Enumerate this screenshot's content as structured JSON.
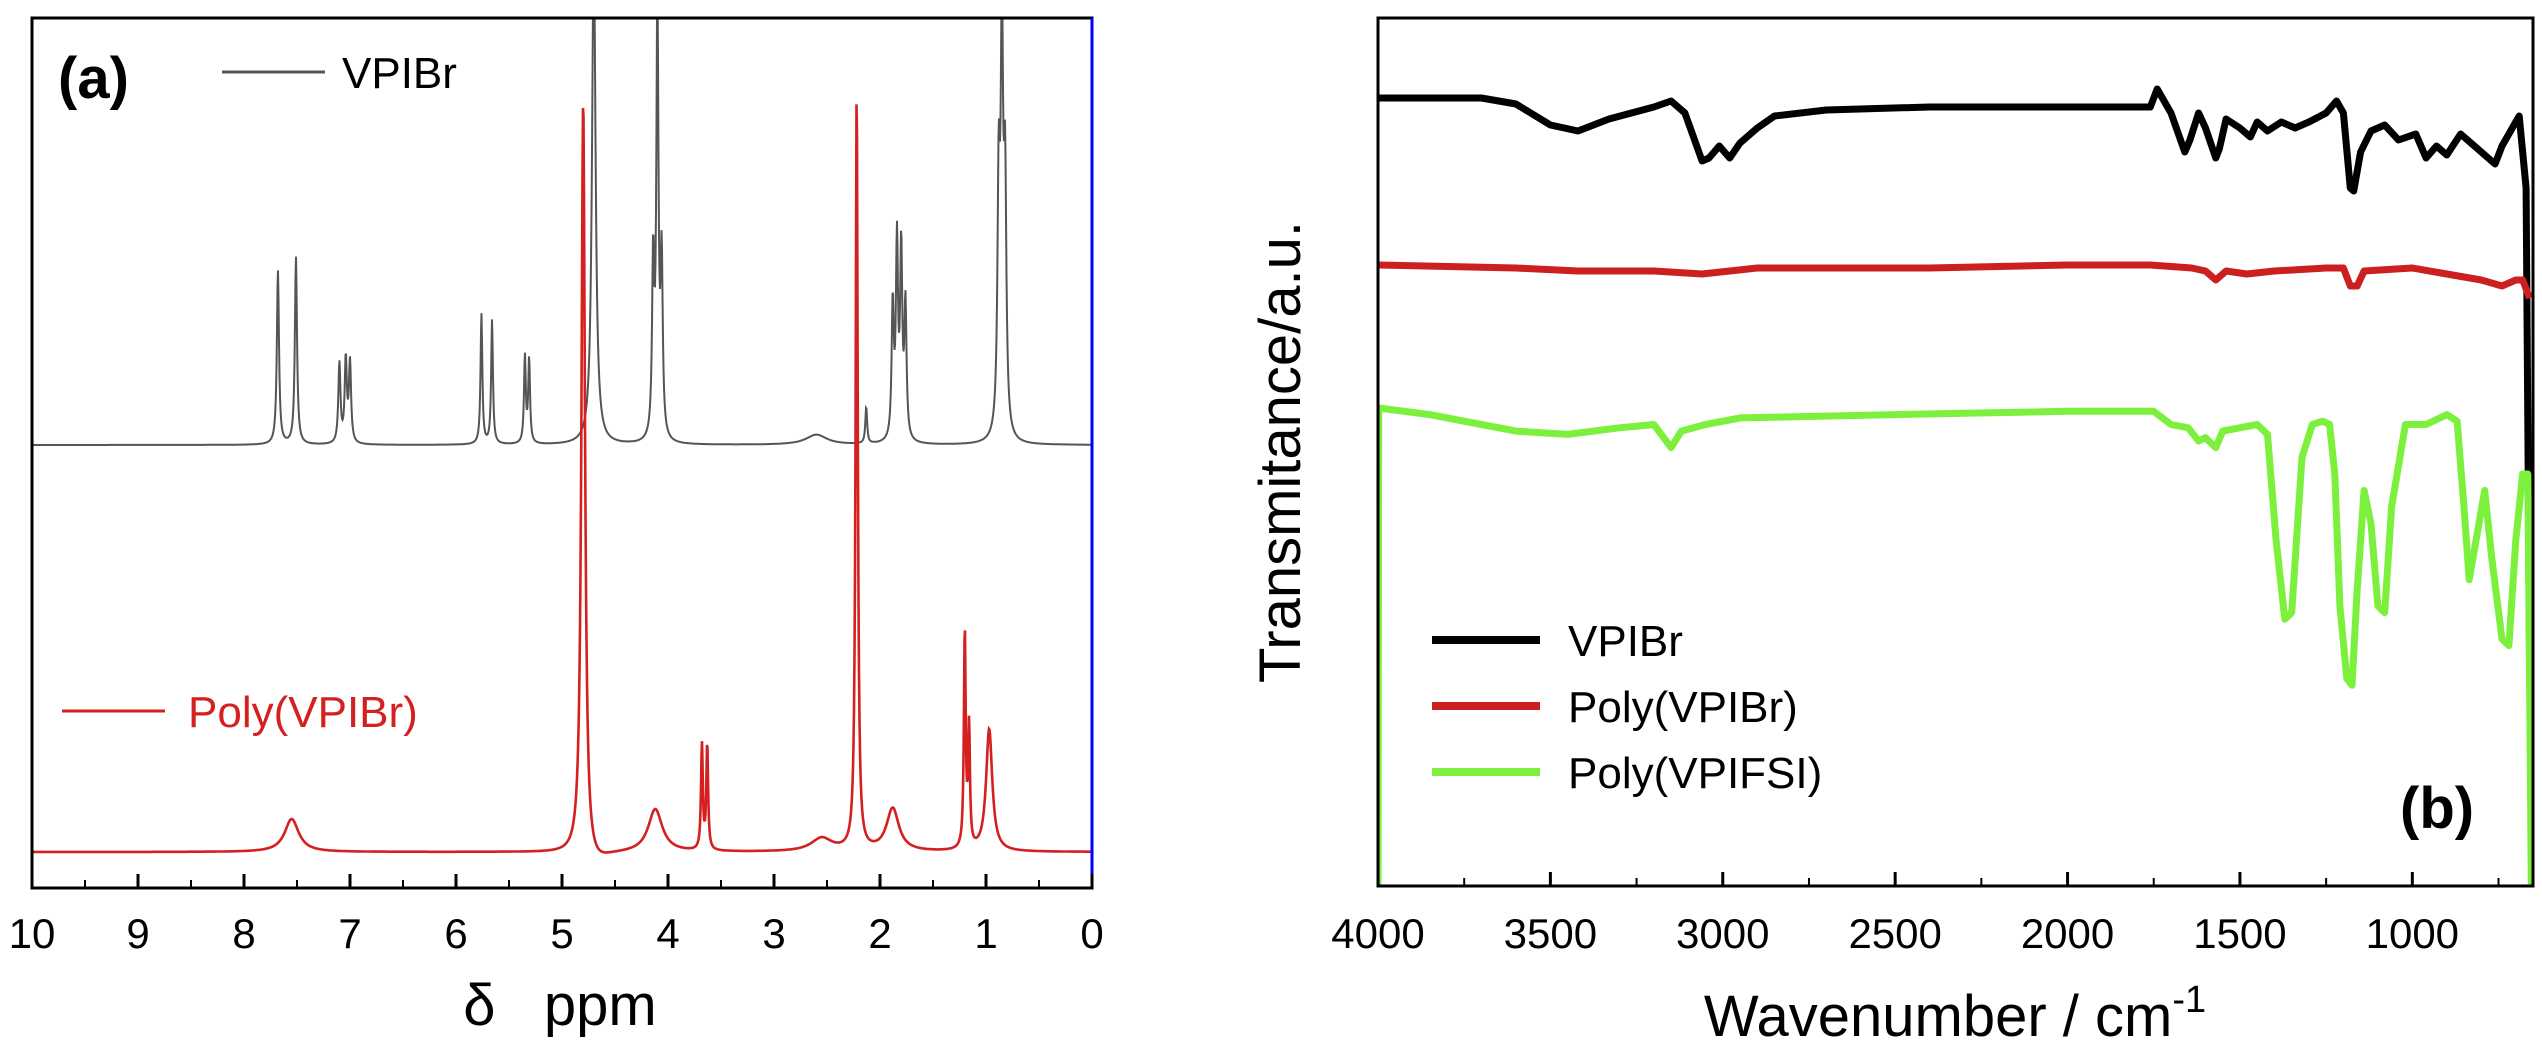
{
  "chart_data": [
    {
      "panel_label": "(a)",
      "type": "line",
      "xlabel": "δ   ppm",
      "x_ticks": [
        "10",
        "9",
        "8",
        "7",
        "6",
        "5",
        "4",
        "3",
        "2",
        "1",
        "0"
      ],
      "xlim": [
        10,
        0
      ],
      "x_reversed": true,
      "legend_position": "upper-left / middle-left",
      "colors": {
        "VPIBr": "#555555",
        "Poly(VPIBr)": "#d42020",
        "frame": "#000000",
        "right_edge": "#0000ff"
      },
      "series": [
        {
          "name": "VPIBr",
          "legend_label": "VPIBr",
          "baseline": 0,
          "peaks": [
            {
              "ppm": 7.68,
              "intensity": 0.52,
              "width": 0.012
            },
            {
              "ppm": 7.51,
              "intensity": 0.56,
              "width": 0.012
            },
            {
              "ppm": 7.1,
              "intensity": 0.24,
              "width": 0.012
            },
            {
              "ppm": 7.04,
              "intensity": 0.25,
              "width": 0.012
            },
            {
              "ppm": 7.0,
              "intensity": 0.24,
              "width": 0.012
            },
            {
              "ppm": 5.76,
              "intensity": 0.39,
              "width": 0.01
            },
            {
              "ppm": 5.66,
              "intensity": 0.37,
              "width": 0.01
            },
            {
              "ppm": 5.35,
              "intensity": 0.26,
              "width": 0.01
            },
            {
              "ppm": 5.31,
              "intensity": 0.25,
              "width": 0.01
            },
            {
              "ppm": 4.7,
              "intensity": 1.5,
              "width": 0.02
            },
            {
              "ppm": 4.14,
              "intensity": 0.52,
              "width": 0.012
            },
            {
              "ppm": 4.1,
              "intensity": 1.3,
              "width": 0.012
            },
            {
              "ppm": 4.06,
              "intensity": 0.52,
              "width": 0.012
            },
            {
              "ppm": 2.6,
              "intensity": 0.03,
              "width": 0.12
            },
            {
              "ppm": 2.13,
              "intensity": 0.11,
              "width": 0.01
            },
            {
              "ppm": 1.88,
              "intensity": 0.4,
              "width": 0.012
            },
            {
              "ppm": 1.84,
              "intensity": 0.58,
              "width": 0.012
            },
            {
              "ppm": 1.8,
              "intensity": 0.56,
              "width": 0.012
            },
            {
              "ppm": 1.76,
              "intensity": 0.4,
              "width": 0.012
            },
            {
              "ppm": 0.88,
              "intensity": 0.72,
              "width": 0.014
            },
            {
              "ppm": 0.85,
              "intensity": 1.15,
              "width": 0.014
            },
            {
              "ppm": 0.82,
              "intensity": 0.72,
              "width": 0.014
            }
          ]
        },
        {
          "name": "Poly(VPIBr)",
          "legend_label": "Poly(VPIBr)",
          "baseline": 0,
          "peaks": [
            {
              "ppm": 7.55,
              "intensity": 0.1,
              "width": 0.08
            },
            {
              "ppm": 4.8,
              "intensity": 2.3,
              "width": 0.02
            },
            {
              "ppm": 4.7,
              "intensity": -0.04,
              "width": 0.15
            },
            {
              "ppm": 4.12,
              "intensity": 0.13,
              "width": 0.08
            },
            {
              "ppm": 3.68,
              "intensity": 0.32,
              "width": 0.01
            },
            {
              "ppm": 3.63,
              "intensity": 0.32,
              "width": 0.01
            },
            {
              "ppm": 2.55,
              "intensity": 0.04,
              "width": 0.12
            },
            {
              "ppm": 2.22,
              "intensity": 2.3,
              "width": 0.012
            },
            {
              "ppm": 1.88,
              "intensity": 0.13,
              "width": 0.07
            },
            {
              "ppm": 1.2,
              "intensity": 0.66,
              "width": 0.01
            },
            {
              "ppm": 1.16,
              "intensity": 0.36,
              "width": 0.01
            },
            {
              "ppm": 0.97,
              "intensity": 0.37,
              "width": 0.035
            }
          ]
        }
      ]
    },
    {
      "panel_label": "(b)",
      "type": "line",
      "xlabel": "Wavenumber / cm",
      "xlabel_superscript": "-1",
      "ylabel": "Transmitance/a.u.",
      "x_ticks": [
        "4000",
        "3500",
        "3000",
        "2500",
        "2000",
        "1500",
        "1000"
      ],
      "xlim": [
        4000,
        650
      ],
      "x_reversed": true,
      "legend_position": "lower-left",
      "colors": {
        "VPIBr": "#000000",
        "Poly(VPIBr)": "#cc1f1f",
        "Poly(VPIFSI)": "#7cf03c"
      },
      "series": [
        {
          "name": "VPIBr",
          "legend_label": "VPIBr",
          "points": [
            [
              4000,
              0.0
            ],
            [
              3700,
              0.0
            ],
            [
              3600,
              -0.02
            ],
            [
              3500,
              -0.09
            ],
            [
              3420,
              -0.11
            ],
            [
              3330,
              -0.07
            ],
            [
              3200,
              -0.03
            ],
            [
              3150,
              -0.01
            ],
            [
              3110,
              -0.05
            ],
            [
              3060,
              -0.21
            ],
            [
              3040,
              -0.2
            ],
            [
              3010,
              -0.16
            ],
            [
              2980,
              -0.2
            ],
            [
              2950,
              -0.15
            ],
            [
              2900,
              -0.1
            ],
            [
              2850,
              -0.06
            ],
            [
              2700,
              -0.04
            ],
            [
              2400,
              -0.03
            ],
            [
              2000,
              -0.03
            ],
            [
              1760,
              -0.03
            ],
            [
              1740,
              0.03
            ],
            [
              1700,
              -0.05
            ],
            [
              1660,
              -0.18
            ],
            [
              1645,
              -0.14
            ],
            [
              1620,
              -0.05
            ],
            [
              1600,
              -0.1
            ],
            [
              1570,
              -0.2
            ],
            [
              1560,
              -0.17
            ],
            [
              1540,
              -0.07
            ],
            [
              1500,
              -0.1
            ],
            [
              1470,
              -0.13
            ],
            [
              1450,
              -0.08
            ],
            [
              1420,
              -0.11
            ],
            [
              1380,
              -0.08
            ],
            [
              1340,
              -0.1
            ],
            [
              1300,
              -0.08
            ],
            [
              1250,
              -0.05
            ],
            [
              1220,
              -0.01
            ],
            [
              1200,
              -0.05
            ],
            [
              1180,
              -0.3
            ],
            [
              1170,
              -0.31
            ],
            [
              1150,
              -0.18
            ],
            [
              1120,
              -0.11
            ],
            [
              1080,
              -0.09
            ],
            [
              1040,
              -0.14
            ],
            [
              990,
              -0.12
            ],
            [
              960,
              -0.2
            ],
            [
              930,
              -0.16
            ],
            [
              900,
              -0.19
            ],
            [
              860,
              -0.12
            ],
            [
              820,
              -0.16
            ],
            [
              780,
              -0.2
            ],
            [
              760,
              -0.22
            ],
            [
              740,
              -0.16
            ],
            [
              710,
              -0.1
            ],
            [
              690,
              -0.06
            ],
            [
              670,
              -0.3
            ],
            [
              660,
              -1.9
            ]
          ]
        },
        {
          "name": "Poly(VPIBr)",
          "legend_label": "Poly(VPIBr)",
          "points": [
            [
              4000,
              0.0
            ],
            [
              3600,
              -0.01
            ],
            [
              3420,
              -0.02
            ],
            [
              3200,
              -0.02
            ],
            [
              3060,
              -0.03
            ],
            [
              2900,
              -0.01
            ],
            [
              2400,
              -0.01
            ],
            [
              2000,
              0.0
            ],
            [
              1760,
              0.0
            ],
            [
              1640,
              -0.01
            ],
            [
              1600,
              -0.02
            ],
            [
              1570,
              -0.05
            ],
            [
              1540,
              -0.02
            ],
            [
              1480,
              -0.03
            ],
            [
              1400,
              -0.02
            ],
            [
              1250,
              -0.01
            ],
            [
              1200,
              -0.01
            ],
            [
              1180,
              -0.07
            ],
            [
              1160,
              -0.07
            ],
            [
              1140,
              -0.02
            ],
            [
              1000,
              -0.01
            ],
            [
              900,
              -0.03
            ],
            [
              800,
              -0.05
            ],
            [
              740,
              -0.07
            ],
            [
              700,
              -0.05
            ],
            [
              680,
              -0.05
            ],
            [
              660,
              -0.11
            ]
          ]
        },
        {
          "name": "Poly(VPIFSI)",
          "legend_label": "Poly(VPIFSI)",
          "points": [
            [
              4000,
              -1.7
            ],
            [
              3998,
              0.0
            ],
            [
              3850,
              -0.02
            ],
            [
              3700,
              -0.05
            ],
            [
              3600,
              -0.07
            ],
            [
              3450,
              -0.08
            ],
            [
              3300,
              -0.06
            ],
            [
              3200,
              -0.05
            ],
            [
              3150,
              -0.12
            ],
            [
              3120,
              -0.07
            ],
            [
              3050,
              -0.05
            ],
            [
              2950,
              -0.03
            ],
            [
              2500,
              -0.02
            ],
            [
              2000,
              -0.01
            ],
            [
              1750,
              -0.01
            ],
            [
              1700,
              -0.05
            ],
            [
              1650,
              -0.06
            ],
            [
              1620,
              -0.1
            ],
            [
              1600,
              -0.09
            ],
            [
              1570,
              -0.12
            ],
            [
              1550,
              -0.07
            ],
            [
              1500,
              -0.06
            ],
            [
              1450,
              -0.05
            ],
            [
              1420,
              -0.08
            ],
            [
              1395,
              -0.4
            ],
            [
              1370,
              -0.64
            ],
            [
              1350,
              -0.62
            ],
            [
              1320,
              -0.15
            ],
            [
              1290,
              -0.05
            ],
            [
              1260,
              -0.04
            ],
            [
              1240,
              -0.05
            ],
            [
              1225,
              -0.2
            ],
            [
              1210,
              -0.6
            ],
            [
              1190,
              -0.82
            ],
            [
              1175,
              -0.84
            ],
            [
              1160,
              -0.55
            ],
            [
              1140,
              -0.25
            ],
            [
              1120,
              -0.35
            ],
            [
              1100,
              -0.6
            ],
            [
              1080,
              -0.62
            ],
            [
              1060,
              -0.3
            ],
            [
              1020,
              -0.05
            ],
            [
              960,
              -0.05
            ],
            [
              900,
              -0.02
            ],
            [
              870,
              -0.04
            ],
            [
              850,
              -0.3
            ],
            [
              835,
              -0.52
            ],
            [
              815,
              -0.4
            ],
            [
              790,
              -0.25
            ],
            [
              770,
              -0.45
            ],
            [
              740,
              -0.7
            ],
            [
              720,
              -0.72
            ],
            [
              700,
              -0.4
            ],
            [
              680,
              -0.2
            ],
            [
              665,
              -0.2
            ],
            [
              655,
              -1.7
            ]
          ]
        }
      ]
    }
  ]
}
